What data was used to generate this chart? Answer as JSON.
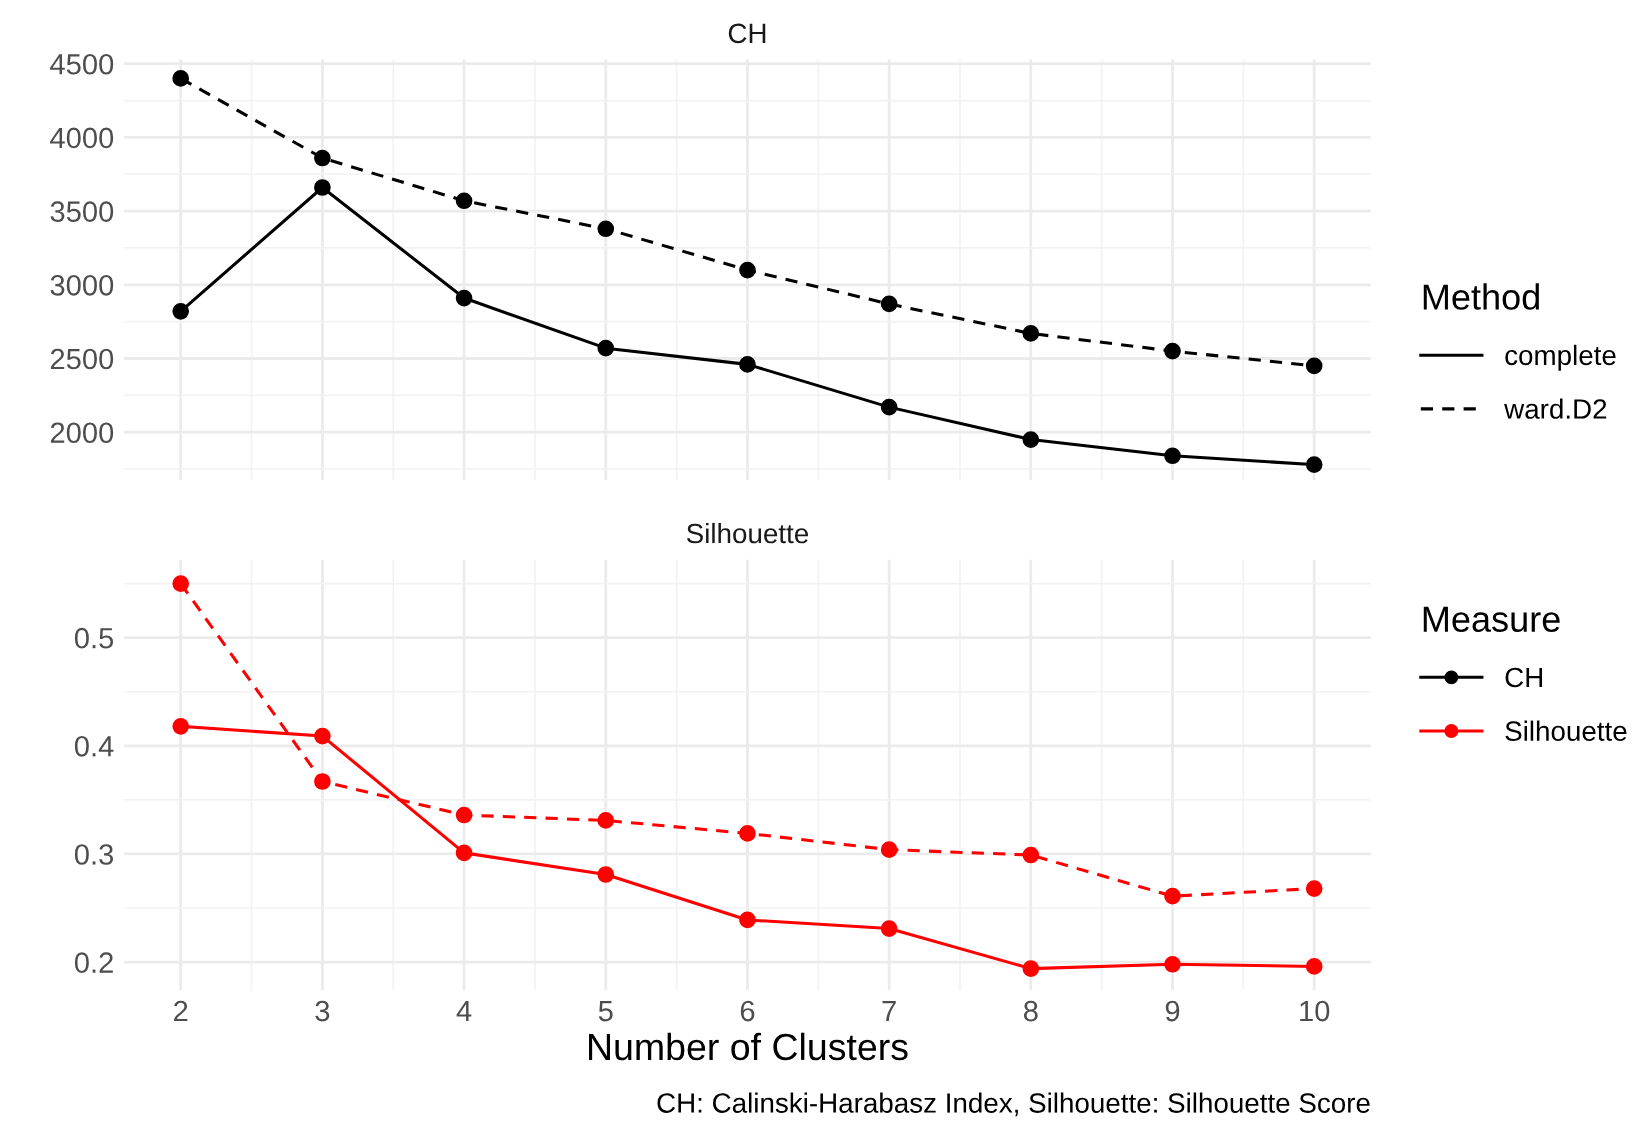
{
  "chart_data": [
    {
      "type": "line",
      "title": "CH",
      "x": [
        2,
        3,
        4,
        5,
        6,
        7,
        8,
        9,
        10
      ],
      "xlim": [
        1.6,
        10.4
      ],
      "xticks": [
        2,
        3,
        4,
        5,
        6,
        7,
        8,
        9,
        10
      ],
      "ylim": [
        1676,
        4528
      ],
      "yticks": [
        2000,
        2500,
        3000,
        3500,
        4000,
        4500
      ],
      "tick_labels": "y",
      "grid": true,
      "marker": "circle",
      "legend": "right",
      "legend_title": "Method",
      "series": [
        {
          "name": "complete",
          "color": "#000000",
          "line_style": "solid",
          "values": [
            2820,
            3660,
            2910,
            2570,
            2460,
            2170,
            1950,
            1840,
            1780
          ]
        },
        {
          "name": "ward.D2",
          "color": "#000000",
          "line_style": "dashed",
          "values": [
            4400,
            3860,
            3570,
            3380,
            3100,
            2870,
            2670,
            2550,
            2450
          ]
        }
      ]
    },
    {
      "type": "line",
      "title": "Silhouette",
      "xlabel": "Number of Clusters",
      "x": [
        2,
        3,
        4,
        5,
        6,
        7,
        8,
        9,
        10
      ],
      "xlim": [
        1.6,
        10.4
      ],
      "xticks": [
        2,
        3,
        4,
        5,
        6,
        7,
        8,
        9,
        10
      ],
      "ylim": [
        0.174,
        0.572
      ],
      "yticks": [
        0.2,
        0.3,
        0.4,
        0.5
      ],
      "grid": true,
      "marker": "circle",
      "legend_title": "Measure",
      "annotations": [
        "CH: Calinski-Harabasz Index, Silhouette: Silhouette Score"
      ],
      "series": [
        {
          "color": "#ff0000",
          "line_style": "solid",
          "values": [
            0.418,
            0.409,
            0.301,
            0.281,
            0.239,
            0.231,
            0.194,
            0.198,
            0.196
          ]
        },
        {
          "color": "#ff0000",
          "line_style": "dashed",
          "values": [
            0.55,
            0.367,
            0.336,
            0.331,
            0.319,
            0.304,
            0.299,
            0.261,
            0.268
          ]
        }
      ]
    }
  ]
}
